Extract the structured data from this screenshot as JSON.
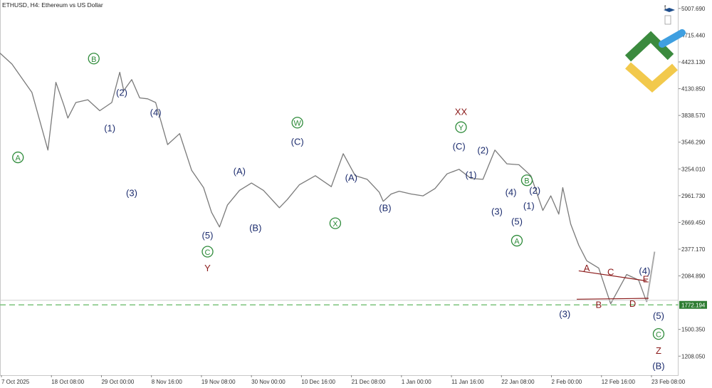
{
  "header": {
    "symbol_title": "ETHUSD, H4:  Ethereum vs US Dollar",
    "corner_letter": "t"
  },
  "colors": {
    "price_line": "#7a7a7a",
    "navy": "#1c2c6e",
    "green": "#2e8b3a",
    "maroon": "#8b1a1a",
    "grid_axis": "#c8c8c8",
    "dashed_level": "#7cc37c",
    "price_tag_bg": "#2e7d32",
    "logo_green": "#3b8a3e",
    "logo_yellow": "#f2c94c",
    "logo_blue": "#3f9fe0"
  },
  "logo": {
    "icon": "company-logo-icon"
  },
  "chart_data": {
    "type": "line",
    "title": "ETHUSD, H4:  Ethereum vs US Dollar",
    "xlabel": "",
    "ylabel": "",
    "ylim": [
      1000,
      5100
    ],
    "grid": false,
    "x_ticks": [
      "7 Oct 2025",
      "18 Oct 08:00",
      "29 Oct 00:00",
      "8 Nov 16:00",
      "19 Nov 08:00",
      "30 Nov 00:00",
      "10 Dec 16:00",
      "21 Dec 08:00",
      "1 Jan 00:00",
      "11 Jan 16:00",
      "22 Jan 08:00",
      "2 Feb 00:00",
      "12 Feb 16:00",
      "23 Feb 08:00"
    ],
    "y_ticks": [
      5007.69,
      4715.44,
      4423.13,
      4130.85,
      3838.57,
      3546.29,
      3254.01,
      2961.73,
      2669.45,
      2377.17,
      2084.89,
      1500.35,
      1208.05
    ],
    "y_tick_labels": [
      "5007.690",
      "4715.440",
      "4423.130",
      "4130.850",
      "3838.570",
      "3546.290",
      "3254.010",
      "2961.730",
      "2669.450",
      "2377.170",
      "2084.890",
      "1500.350",
      "1208.050"
    ],
    "current_price": 1772.194,
    "current_price_label": "1772.194",
    "series": [
      {
        "x": [
          0,
          3,
          8,
          12,
          14,
          16,
          17,
          19,
          22,
          25,
          28,
          30,
          31,
          33,
          35,
          37,
          39,
          42,
          45,
          48,
          51,
          53,
          55,
          57,
          60,
          63,
          66,
          70,
          72,
          75,
          79,
          83,
          86,
          89,
          92,
          95,
          96,
          98,
          100,
          103,
          106,
          109,
          112,
          115,
          118,
          121,
          124,
          127,
          130,
          133,
          136,
          138,
          140,
          141,
          143,
          145,
          147,
          150,
          153,
          157,
          160,
          162
        ],
        "y": [
          4520,
          4400,
          4090,
          3460,
          4200,
          3950,
          3810,
          3980,
          4010,
          3890,
          3980,
          4310,
          4110,
          4230,
          4030,
          4020,
          3980,
          3520,
          3640,
          3240,
          3050,
          2780,
          2620,
          2860,
          3020,
          3100,
          3020,
          2830,
          2920,
          3080,
          3180,
          3060,
          3420,
          3180,
          3140,
          3000,
          2900,
          2980,
          3010,
          2980,
          2960,
          3040,
          3200,
          3250,
          3150,
          3140,
          3460,
          3310,
          3300,
          3180,
          2800,
          2960,
          2760,
          3050,
          2650,
          2420,
          2250,
          2170,
          1780,
          2100,
          2040,
          1800
        ]
      },
      {
        "x": [
          162,
          164
        ],
        "y": [
          1800,
          2350
        ]
      }
    ],
    "annotations": [
      {
        "text": "A",
        "color": "green",
        "circled": true,
        "x": 4.5,
        "y": 3380
      },
      {
        "text": "B",
        "color": "green",
        "circled": true,
        "x": 23.5,
        "y": 4460
      },
      {
        "text": "(2)",
        "color": "navy",
        "circled": false,
        "x": 30.5,
        "y": 4090
      },
      {
        "text": "(1)",
        "color": "navy",
        "circled": false,
        "x": 27.5,
        "y": 3700
      },
      {
        "text": "(3)",
        "color": "navy",
        "circled": false,
        "x": 33,
        "y": 2990
      },
      {
        "text": "(4)",
        "color": "navy",
        "circled": false,
        "x": 39,
        "y": 3870
      },
      {
        "text": "(5)",
        "color": "navy",
        "circled": false,
        "x": 52,
        "y": 2530
      },
      {
        "text": "C",
        "color": "green",
        "circled": true,
        "x": 52,
        "y": 2350
      },
      {
        "text": "Y",
        "color": "maroon",
        "circled": false,
        "x": 52,
        "y": 2170
      },
      {
        "text": "(A)",
        "color": "navy",
        "circled": false,
        "x": 60,
        "y": 3230
      },
      {
        "text": "(B)",
        "color": "navy",
        "circled": false,
        "x": 64,
        "y": 2610
      },
      {
        "text": "W",
        "color": "green",
        "circled": true,
        "x": 74.5,
        "y": 3760
      },
      {
        "text": "(C)",
        "color": "navy",
        "circled": false,
        "x": 74.5,
        "y": 3550
      },
      {
        "text": "(A)",
        "color": "navy",
        "circled": false,
        "x": 88,
        "y": 3160
      },
      {
        "text": "X",
        "color": "green",
        "circled": true,
        "x": 84,
        "y": 2660
      },
      {
        "text": "(B)",
        "color": "navy",
        "circled": false,
        "x": 96.5,
        "y": 2830
      },
      {
        "text": "XX",
        "color": "maroon",
        "circled": false,
        "x": 115.5,
        "y": 3880
      },
      {
        "text": "Y",
        "color": "green",
        "circled": true,
        "x": 115.5,
        "y": 3710
      },
      {
        "text": "(C)",
        "color": "navy",
        "circled": false,
        "x": 115,
        "y": 3500
      },
      {
        "text": "(2)",
        "color": "navy",
        "circled": false,
        "x": 121,
        "y": 3460
      },
      {
        "text": "(1)",
        "color": "navy",
        "circled": false,
        "x": 118,
        "y": 3190
      },
      {
        "text": "(4)",
        "color": "navy",
        "circled": false,
        "x": 128,
        "y": 3000
      },
      {
        "text": "B",
        "color": "green",
        "circled": true,
        "x": 132,
        "y": 3130
      },
      {
        "text": "(2)",
        "color": "navy",
        "circled": false,
        "x": 134,
        "y": 3020
      },
      {
        "text": "(1)",
        "color": "navy",
        "circled": false,
        "x": 132.5,
        "y": 2850
      },
      {
        "text": "(3)",
        "color": "navy",
        "circled": false,
        "x": 124.5,
        "y": 2790
      },
      {
        "text": "(5)",
        "color": "navy",
        "circled": false,
        "x": 129.5,
        "y": 2680
      },
      {
        "text": "A",
        "color": "green",
        "circled": true,
        "x": 129.5,
        "y": 2470
      },
      {
        "text": "A",
        "color": "maroon",
        "circled": false,
        "x": 147,
        "y": 2170
      },
      {
        "text": "C",
        "color": "maroon",
        "circled": false,
        "x": 153,
        "y": 2130
      },
      {
        "text": "(4)",
        "color": "navy",
        "circled": false,
        "x": 161.5,
        "y": 2140
      },
      {
        "text": "E",
        "color": "maroon",
        "circled": false,
        "x": 161.8,
        "y": 2050
      },
      {
        "text": "B",
        "color": "maroon",
        "circled": false,
        "x": 150,
        "y": 1770
      },
      {
        "text": "D",
        "color": "maroon",
        "circled": false,
        "x": 158.5,
        "y": 1780
      },
      {
        "text": "(3)",
        "color": "navy",
        "circled": false,
        "x": 141.5,
        "y": 1670
      },
      {
        "text": "(5)",
        "color": "navy",
        "circled": false,
        "x": 165,
        "y": 1650
      },
      {
        "text": "C",
        "color": "green",
        "circled": true,
        "x": 165,
        "y": 1450
      },
      {
        "text": "Z",
        "color": "maroon",
        "circled": false,
        "x": 165,
        "y": 1270
      },
      {
        "text": "(B)",
        "color": "navy",
        "circled": false,
        "x": 165,
        "y": 1100
      }
    ],
    "triangle_lines": [
      {
        "x": [
          145,
          162
        ],
        "y": [
          2140,
          2030
        ]
      },
      {
        "x": [
          144.5,
          162.5
        ],
        "y": [
          1830,
          1840
        ]
      }
    ]
  }
}
